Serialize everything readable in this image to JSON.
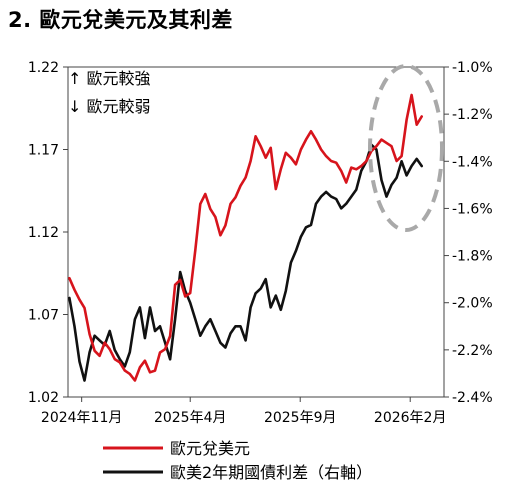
{
  "title": "2. 歐元兌美元及其利差",
  "chart_data": {
    "type": "line",
    "x_ticks": [
      "2024年11月",
      "2025年4月",
      "2025年9月",
      "2026年2月"
    ],
    "left_axis": {
      "ylim": [
        1.02,
        1.22
      ],
      "ticks": [
        "1.22",
        "1.17",
        "1.12",
        "1.07",
        "1.02"
      ]
    },
    "right_axis": {
      "ylim": [
        -2.4,
        -1.0
      ],
      "ticks": [
        "-1.0%",
        "-1.2%",
        "-1.4%",
        "-1.6%",
        "-1.8%",
        "-2.0%",
        "-2.2%",
        "-2.4%"
      ]
    },
    "annotations": {
      "up": "↑ 歐元較強",
      "down": "↓ 歐元較弱"
    },
    "grid": false,
    "legend_position": "bottom",
    "series": [
      {
        "name": "歐元兌美元",
        "color": "#d7141c",
        "axis": "left",
        "x": [
          "2024-10-15",
          "2024-10-22",
          "2024-10-29",
          "2024-11-05",
          "2024-11-12",
          "2024-11-19",
          "2024-11-26",
          "2024-12-03",
          "2024-12-10",
          "2024-12-17",
          "2024-12-24",
          "2024-12-31",
          "2025-01-07",
          "2025-01-14",
          "2025-01-21",
          "2025-01-28",
          "2025-02-04",
          "2025-02-11",
          "2025-02-18",
          "2025-02-25",
          "2025-03-04",
          "2025-03-11",
          "2025-03-18",
          "2025-03-25",
          "2025-04-01",
          "2025-04-08",
          "2025-04-15",
          "2025-04-22",
          "2025-04-29",
          "2025-05-06",
          "2025-05-13",
          "2025-05-20",
          "2025-05-27",
          "2025-06-03",
          "2025-06-10",
          "2025-06-17",
          "2025-06-24",
          "2025-07-01",
          "2025-07-08",
          "2025-07-15",
          "2025-07-22",
          "2025-07-29",
          "2025-08-05",
          "2025-08-12",
          "2025-08-19",
          "2025-08-26",
          "2025-09-02",
          "2025-09-09",
          "2025-09-16",
          "2025-09-23",
          "2025-09-30",
          "2025-10-07",
          "2025-10-14",
          "2025-10-21",
          "2025-10-28",
          "2025-11-04",
          "2025-11-11",
          "2025-11-18",
          "2025-11-25",
          "2025-12-02",
          "2025-12-09",
          "2025-12-16",
          "2025-12-23",
          "2025-12-30",
          "2026-01-06",
          "2026-01-13",
          "2026-01-20",
          "2026-01-27",
          "2026-02-03",
          "2026-02-10",
          "2026-02-17"
        ],
        "y": [
          1.092,
          1.085,
          1.079,
          1.074,
          1.058,
          1.048,
          1.045,
          1.053,
          1.049,
          1.043,
          1.041,
          1.036,
          1.034,
          1.03,
          1.038,
          1.042,
          1.035,
          1.036,
          1.047,
          1.049,
          1.057,
          1.088,
          1.091,
          1.081,
          1.083,
          1.109,
          1.137,
          1.143,
          1.134,
          1.129,
          1.118,
          1.124,
          1.137,
          1.141,
          1.148,
          1.153,
          1.163,
          1.178,
          1.172,
          1.165,
          1.171,
          1.146,
          1.158,
          1.168,
          1.165,
          1.161,
          1.17,
          1.176,
          1.181,
          1.176,
          1.17,
          1.166,
          1.163,
          1.162,
          1.157,
          1.15,
          1.159,
          1.158,
          1.16,
          1.163,
          1.169,
          1.172,
          1.176,
          1.174,
          1.172,
          1.163,
          1.166,
          1.188,
          1.203,
          1.185,
          1.19
        ]
      },
      {
        "name": "歐美2年期國債利差（右軸）",
        "color": "#111111",
        "axis": "right",
        "x": [
          "2024-10-15",
          "2024-10-22",
          "2024-10-29",
          "2024-11-05",
          "2024-11-12",
          "2024-11-19",
          "2024-11-26",
          "2024-12-03",
          "2024-12-10",
          "2024-12-17",
          "2024-12-24",
          "2024-12-31",
          "2025-01-07",
          "2025-01-14",
          "2025-01-21",
          "2025-01-28",
          "2025-02-04",
          "2025-02-11",
          "2025-02-18",
          "2025-02-25",
          "2025-03-04",
          "2025-03-11",
          "2025-03-18",
          "2025-03-25",
          "2025-04-01",
          "2025-04-08",
          "2025-04-15",
          "2025-04-22",
          "2025-04-29",
          "2025-05-06",
          "2025-05-13",
          "2025-05-20",
          "2025-05-27",
          "2025-06-03",
          "2025-06-10",
          "2025-06-17",
          "2025-06-24",
          "2025-07-01",
          "2025-07-08",
          "2025-07-15",
          "2025-07-22",
          "2025-07-29",
          "2025-08-05",
          "2025-08-12",
          "2025-08-19",
          "2025-08-26",
          "2025-09-02",
          "2025-09-09",
          "2025-09-16",
          "2025-09-23",
          "2025-09-30",
          "2025-10-07",
          "2025-10-14",
          "2025-10-21",
          "2025-10-28",
          "2025-11-04",
          "2025-11-11",
          "2025-11-18",
          "2025-11-25",
          "2025-12-02",
          "2025-12-09",
          "2025-12-16",
          "2025-12-23",
          "2025-12-30",
          "2026-01-06",
          "2026-01-13",
          "2026-01-20",
          "2026-01-27",
          "2026-02-03",
          "2026-02-10",
          "2026-02-17"
        ],
        "y": [
          -1.98,
          -2.1,
          -2.25,
          -2.33,
          -2.21,
          -2.14,
          -2.16,
          -2.18,
          -2.12,
          -2.2,
          -2.24,
          -2.27,
          -2.21,
          -2.07,
          -2.02,
          -2.15,
          -2.02,
          -2.12,
          -2.1,
          -2.17,
          -2.24,
          -2.07,
          -1.87,
          -1.95,
          -2.0,
          -2.07,
          -2.14,
          -2.1,
          -2.07,
          -2.12,
          -2.17,
          -2.19,
          -2.13,
          -2.1,
          -2.1,
          -2.16,
          -2.02,
          -1.96,
          -1.94,
          -1.9,
          -2.02,
          -1.97,
          -2.03,
          -1.95,
          -1.83,
          -1.78,
          -1.72,
          -1.68,
          -1.67,
          -1.58,
          -1.55,
          -1.53,
          -1.55,
          -1.56,
          -1.6,
          -1.58,
          -1.55,
          -1.52,
          -1.44,
          -1.4,
          -1.33,
          -1.35,
          -1.48,
          -1.55,
          -1.5,
          -1.47,
          -1.4,
          -1.46,
          -1.42,
          -1.39,
          -1.42
        ]
      }
    ]
  }
}
